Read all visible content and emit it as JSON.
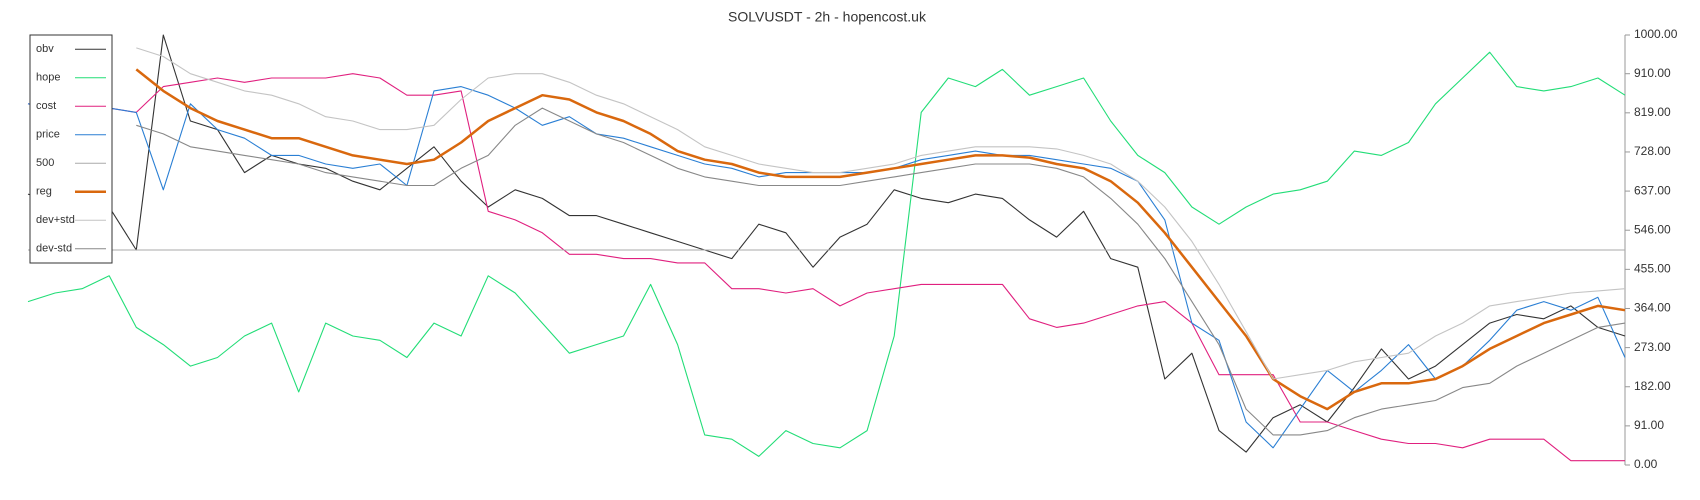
{
  "chart_data": {
    "type": "line",
    "title": "SOLVUSDT - 2h - hopencost.uk",
    "ylim": [
      0,
      1000
    ],
    "yticks": [
      {
        "value": 0,
        "label": "0.00"
      },
      {
        "value": 91,
        "label": "91.00"
      },
      {
        "value": 182,
        "label": "182.00"
      },
      {
        "value": 273,
        "label": "273.00"
      },
      {
        "value": 364,
        "label": "364.00"
      },
      {
        "value": 455,
        "label": "455.00"
      },
      {
        "value": 546,
        "label": "546.00"
      },
      {
        "value": 637,
        "label": "637.00"
      },
      {
        "value": 728,
        "label": "728.00"
      },
      {
        "value": 819,
        "label": "819.00"
      },
      {
        "value": 910,
        "label": "910.00"
      },
      {
        "value": 1000,
        "label": "1000.00"
      }
    ],
    "legend": "top-left",
    "series": [
      {
        "name": "obv",
        "color": "#333333",
        "values": [
          630,
          610,
          580,
          600,
          500,
          1000,
          800,
          780,
          680,
          720,
          700,
          690,
          660,
          640,
          690,
          740,
          660,
          600,
          640,
          620,
          580,
          580,
          560,
          540,
          520,
          500,
          480,
          560,
          540,
          460,
          530,
          560,
          640,
          620,
          610,
          630,
          620,
          570,
          530,
          590,
          480,
          460,
          200,
          260,
          80,
          30,
          110,
          140,
          100,
          180,
          270,
          200,
          230,
          280,
          330,
          350,
          340,
          370,
          320,
          300
        ]
      },
      {
        "name": "hope",
        "color": "#22dd77",
        "values": [
          380,
          400,
          410,
          440,
          320,
          280,
          230,
          250,
          300,
          330,
          170,
          330,
          300,
          290,
          250,
          330,
          300,
          440,
          400,
          330,
          260,
          280,
          300,
          420,
          280,
          70,
          60,
          20,
          80,
          50,
          40,
          80,
          300,
          820,
          900,
          880,
          920,
          860,
          880,
          900,
          800,
          720,
          680,
          600,
          560,
          600,
          630,
          640,
          660,
          730,
          720,
          750,
          840,
          900,
          960,
          880,
          870,
          880,
          900,
          860
        ]
      },
      {
        "name": "cost",
        "color": "#e0207f",
        "values": [
          840,
          830,
          820,
          830,
          820,
          880,
          890,
          900,
          890,
          900,
          900,
          900,
          910,
          900,
          860,
          860,
          870,
          590,
          570,
          540,
          490,
          490,
          480,
          480,
          470,
          470,
          410,
          410,
          400,
          410,
          370,
          400,
          410,
          420,
          420,
          420,
          420,
          340,
          320,
          330,
          350,
          370,
          380,
          330,
          210,
          210,
          210,
          100,
          100,
          80,
          60,
          50,
          50,
          40,
          60,
          60,
          60,
          10,
          10,
          10
        ]
      },
      {
        "name": "price",
        "color": "#2a7fd4",
        "values": [
          840,
          830,
          830,
          830,
          820,
          640,
          840,
          780,
          760,
          720,
          720,
          700,
          690,
          700,
          650,
          870,
          880,
          860,
          830,
          790,
          810,
          770,
          760,
          740,
          720,
          700,
          690,
          670,
          680,
          680,
          680,
          680,
          690,
          710,
          720,
          730,
          720,
          720,
          710,
          700,
          690,
          660,
          570,
          330,
          290,
          100,
          40,
          130,
          220,
          170,
          220,
          280,
          200,
          230,
          290,
          360,
          380,
          360,
          390,
          250
        ]
      },
      {
        "name": "500",
        "color": "#aaaaaa",
        "values": [
          500,
          500,
          500,
          500,
          500,
          500,
          500,
          500,
          500,
          500,
          500,
          500,
          500,
          500,
          500,
          500,
          500,
          500,
          500,
          500,
          500,
          500,
          500,
          500,
          500,
          500,
          500,
          500,
          500,
          500,
          500,
          500,
          500,
          500,
          500,
          500,
          500,
          500,
          500,
          500,
          500,
          500,
          500,
          500,
          500,
          500,
          500,
          500,
          500,
          500,
          500,
          500,
          500,
          500,
          500,
          500,
          500,
          500,
          500,
          500
        ]
      },
      {
        "name": "reg",
        "color": "#d9680e",
        "width": 2.5,
        "values": [
          null,
          null,
          null,
          null,
          920,
          870,
          830,
          800,
          780,
          760,
          760,
          740,
          720,
          710,
          700,
          710,
          750,
          800,
          830,
          860,
          850,
          820,
          800,
          770,
          730,
          710,
          700,
          680,
          670,
          670,
          670,
          680,
          690,
          700,
          710,
          720,
          720,
          715,
          700,
          690,
          660,
          610,
          540,
          460,
          380,
          300,
          200,
          160,
          130,
          170,
          190,
          190,
          200,
          230,
          270,
          300,
          330,
          350,
          370,
          360
        ]
      },
      {
        "name": "dev+std",
        "color": "#c4c4c4",
        "values": [
          null,
          null,
          null,
          null,
          970,
          950,
          910,
          890,
          870,
          860,
          840,
          810,
          800,
          780,
          780,
          790,
          850,
          900,
          910,
          910,
          890,
          860,
          840,
          810,
          780,
          740,
          720,
          700,
          690,
          680,
          680,
          690,
          700,
          720,
          730,
          740,
          740,
          740,
          735,
          720,
          700,
          660,
          600,
          520,
          420,
          310,
          200,
          210,
          220,
          240,
          250,
          260,
          300,
          330,
          370,
          380,
          390,
          400,
          405,
          410
        ]
      },
      {
        "name": "dev-std",
        "color": "#888888",
        "values": [
          null,
          null,
          null,
          null,
          790,
          770,
          740,
          730,
          720,
          710,
          700,
          680,
          670,
          660,
          650,
          650,
          690,
          720,
          790,
          830,
          800,
          770,
          750,
          720,
          690,
          670,
          660,
          650,
          650,
          650,
          650,
          660,
          670,
          680,
          690,
          700,
          700,
          700,
          690,
          670,
          620,
          560,
          480,
          380,
          280,
          130,
          70,
          70,
          80,
          110,
          130,
          140,
          150,
          180,
          190,
          230,
          260,
          290,
          320,
          330
        ]
      }
    ]
  }
}
